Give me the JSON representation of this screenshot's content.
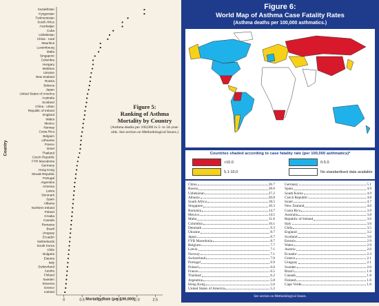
{
  "chart_data": {
    "type": "dot",
    "figure_label": "Figure 5:",
    "title": "Ranking of Asthma Mortality by Country",
    "subtitle": "(Asthma deaths per 100,000 in 5- to 34-year-olds. See section on Methodological Issues.)",
    "x_label": "Mortality Rate (per 100,000)",
    "y_label": "Country",
    "color": "#222222",
    "categories": [
      "Kazakhstan",
      "Kyrgyzstan",
      "Turkmenistan",
      "South Africa",
      "Azerbaijan",
      "Cuba",
      "Uzbekistan",
      "China - rural",
      "Mauritius",
      "Luxembourg",
      "Malta",
      "Singapore",
      "Colombia",
      "Hungary",
      "Moldova",
      "Ukraine",
      "New Zealand",
      "Russia",
      "Belarus",
      "Japan",
      "United States of America",
      "Australia",
      "Scotland",
      "China - urban",
      "Republic of Ireland",
      "England",
      "Wales",
      "Mexico",
      "Norway",
      "Costa Rica",
      "Belgium",
      "Lithuania",
      "France",
      "Israel",
      "Thailand",
      "Czech Republic",
      "FYR Macedonia",
      "Germany",
      "Hong Kong",
      "Slovak Republic",
      "Portugal",
      "Argentina",
      "Armenia",
      "Latvia",
      "Denmark",
      "Spain",
      "Albania",
      "Northern Ireland",
      "Poland",
      "Croatia",
      "Canada",
      "Romania",
      "Brazil",
      "Uruguay",
      "Ecuador",
      "Netherlands",
      "South Korea",
      "Chile",
      "Bulgaria",
      "Estonia",
      "Italy",
      "Switzerland",
      "Austria",
      "Finland",
      "Sweden",
      "Slovenia",
      "Greece",
      "Iceland"
    ],
    "values": [
      2.2,
      2.2,
      1.75,
      1.6,
      1.6,
      1.35,
      1.25,
      1.2,
      1.0,
      1.0,
      0.95,
      0.85,
      0.8,
      0.8,
      0.78,
      0.75,
      0.73,
      0.72,
      0.7,
      0.68,
      0.65,
      0.63,
      0.62,
      0.6,
      0.58,
      0.57,
      0.55,
      0.53,
      0.52,
      0.5,
      0.48,
      0.47,
      0.46,
      0.45,
      0.43,
      0.4,
      0.38,
      0.36,
      0.35,
      0.33,
      0.32,
      0.3,
      0.29,
      0.28,
      0.27,
      0.26,
      0.25,
      0.24,
      0.23,
      0.22,
      0.21,
      0.2,
      0.19,
      0.18,
      0.17,
      0.16,
      0.15,
      0.14,
      0.13,
      0.12,
      0.11,
      0.1,
      0.09,
      0.08,
      0.07,
      0.06,
      0.05,
      0.03
    ],
    "xlim": [
      -0.2,
      2.7
    ],
    "xticks": [
      0,
      0.5,
      {
        "value": 1,
        "label": "1.0"
      },
      1.5,
      {
        "value": 2,
        "label": "2.0"
      },
      2.5
    ]
  },
  "figure6": {
    "figure_label": "Figure 6:",
    "title": "World Map of Asthma Case Fatality Rates",
    "subtitle": "(Asthma deaths per 100,000 asthmatics.)",
    "legend": {
      "caption": "Countries shaded according to case fatality rate (per 100,000 asthmatics)*",
      "items": [
        {
          "name": ">10.0",
          "color": "#d7192b"
        },
        {
          "name": "0-5.0",
          "color": "#1fb2ea"
        },
        {
          "name": "5.1-10.0",
          "color": "#f7d117"
        },
        {
          "name": "No standardised data available",
          "color": "#ffffff"
        }
      ]
    },
    "table": {
      "left": [
        [
          "China",
          "36.7"
        ],
        [
          "Russia",
          "28.6"
        ],
        [
          "Uzbekistan",
          "27.2"
        ],
        [
          "Albania",
          "20.8"
        ],
        [
          "South Africa",
          "18.5"
        ],
        [
          "Singapore",
          "16.3"
        ],
        [
          "Romania",
          "14.7"
        ],
        [
          "Mexico",
          "14.5"
        ],
        [
          "Malta",
          "11.6"
        ],
        [
          "Colombia",
          "10.1"
        ],
        [
          "Denmark",
          "9.3"
        ],
        [
          "Ukraine",
          "8.7"
        ],
        [
          "Japan",
          "8.7"
        ],
        [
          "FYR Macedonia",
          "8.7"
        ],
        [
          "Belgium",
          "7.7"
        ],
        [
          "Latvia",
          "7.1"
        ],
        [
          "Norway",
          "7.1"
        ],
        [
          "Switzerland",
          "7.0"
        ],
        [
          "Portugal",
          "6.9"
        ],
        [
          "Poland",
          "6.6"
        ],
        [
          "France",
          "6.5"
        ],
        [
          "Thailand",
          "6.2"
        ],
        [
          "Argentina",
          "5.8"
        ],
        [
          "Hong Kong",
          "5.6"
        ],
        [
          "United States of America",
          "5.2"
        ]
      ],
      "right": [
        [
          "Germany",
          "5.1"
        ],
        [
          "Spain",
          "4.9"
        ],
        [
          "South Korea",
          "4.9"
        ],
        [
          "Czech Republic",
          "4.8"
        ],
        [
          "Israel",
          "4.7"
        ],
        [
          "New Zealand",
          "4.6"
        ],
        [
          "Costa Rica",
          "3.9"
        ],
        [
          "Australia",
          "3.8"
        ],
        [
          "Republic of Ireland",
          "3.6"
        ],
        [
          "Italy",
          "3.6"
        ],
        [
          "Chile",
          "3.5"
        ],
        [
          "England",
          "3.2"
        ],
        [
          "Scotland",
          "3.0"
        ],
        [
          "Estonia",
          "2.9"
        ],
        [
          "Wales",
          "2.9"
        ],
        [
          "Austria",
          "2.6"
        ],
        [
          "Ecuador",
          "2.3"
        ],
        [
          "Greece",
          "2.1"
        ],
        [
          "Uruguay",
          "2.1"
        ],
        [
          "Sweden",
          "2.0"
        ],
        [
          "Brazil",
          "1.8"
        ],
        [
          "Canada",
          "1.8"
        ],
        [
          "Finland",
          "1.6"
        ],
        [
          "Cape Verde",
          "1.0"
        ]
      ]
    },
    "footnote": "See section on Methodological Issues."
  }
}
